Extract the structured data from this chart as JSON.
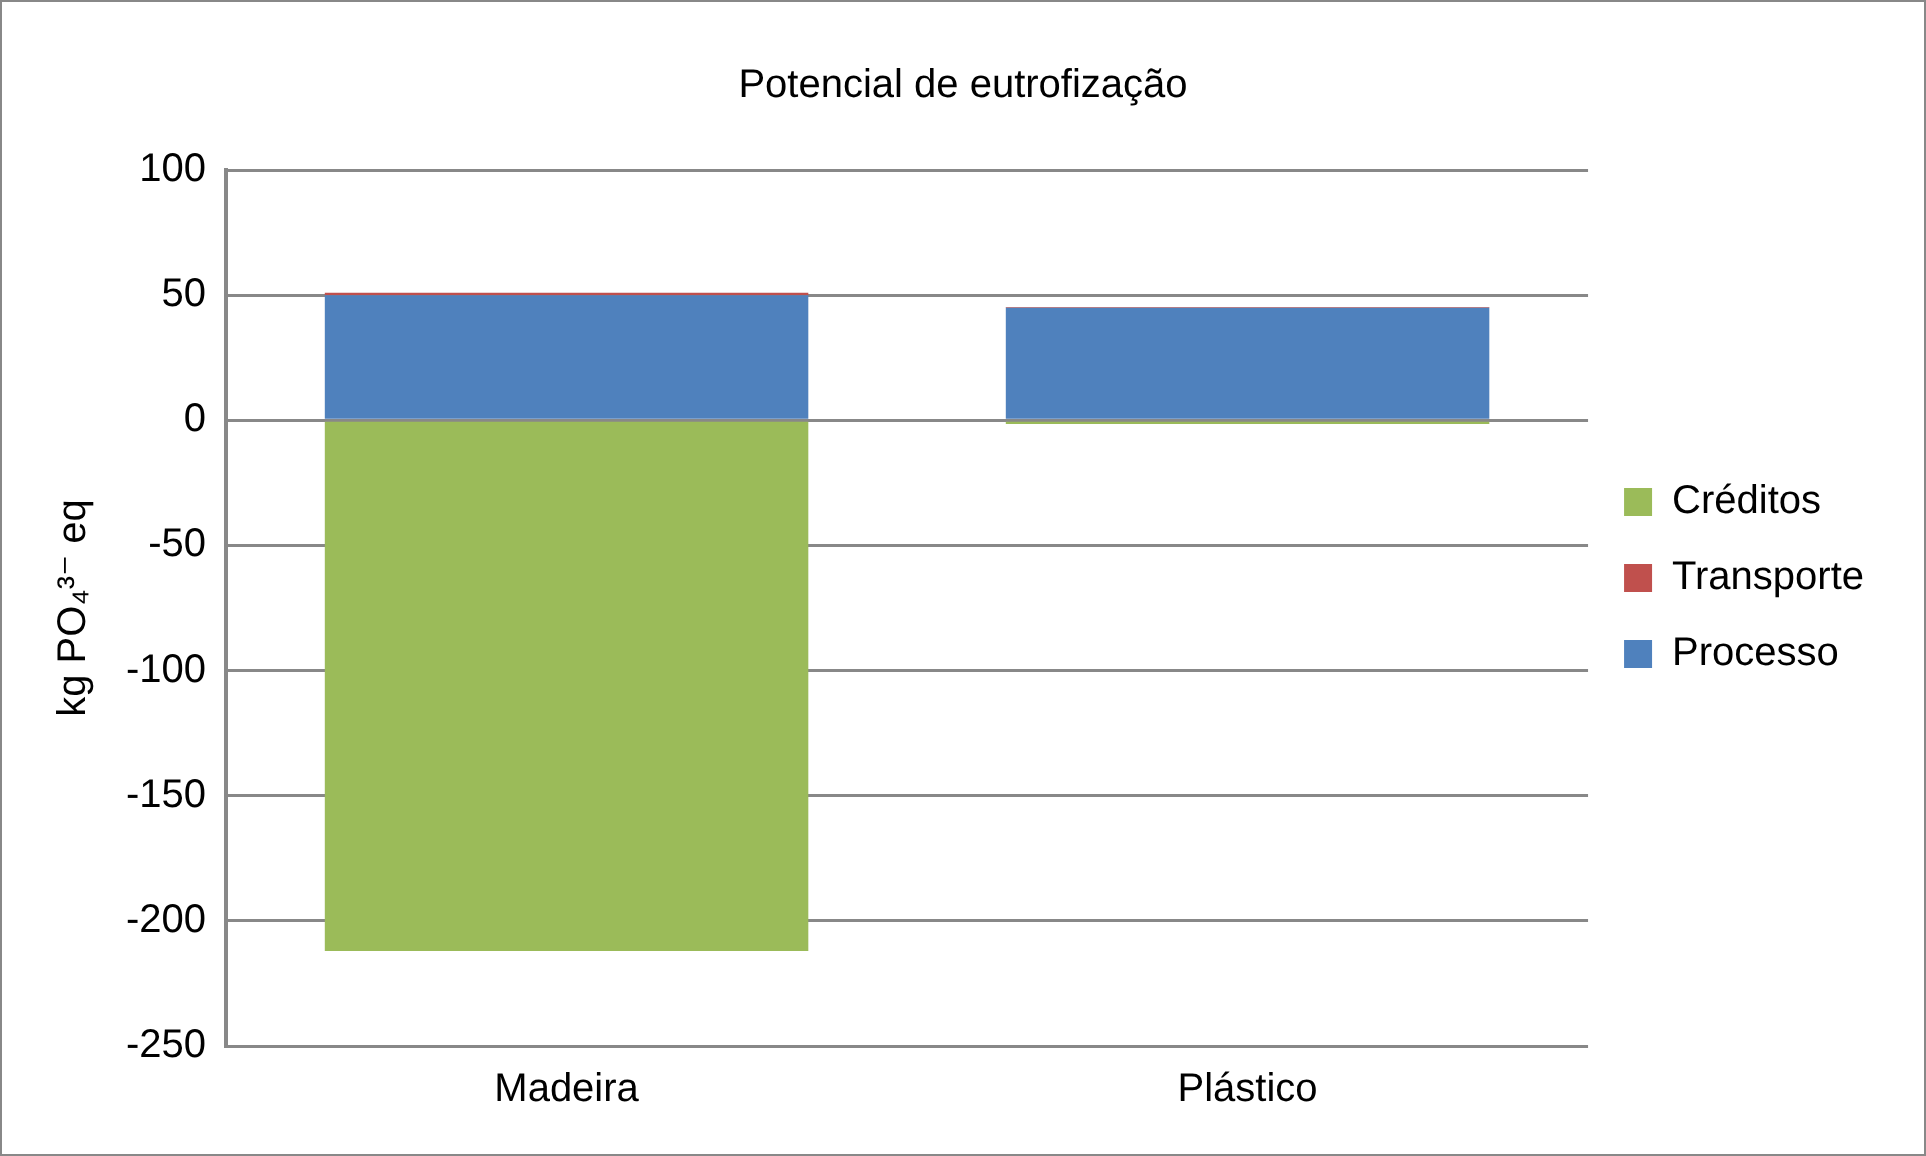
{
  "chart_data": {
    "type": "bar",
    "title": "Potencial de eutrofização",
    "ylabel": "kg PO₄³⁻ eq",
    "categories": [
      "Madeira",
      "Plástico"
    ],
    "stacked": true,
    "legend": "right",
    "grid": "y",
    "ylim": [
      -250,
      100
    ],
    "yticks": [
      -250,
      -200,
      -150,
      -100,
      -50,
      0,
      50,
      100
    ],
    "series": [
      {
        "name": "Processo",
        "color": "#4f81bd",
        "values": [
          50,
          45
        ]
      },
      {
        "name": "Transporte",
        "color": "#c0504d",
        "values": [
          1,
          0.3
        ]
      },
      {
        "name": "Créditos",
        "color": "#9bbb59",
        "values": [
          -212,
          -1.5
        ]
      }
    ]
  }
}
